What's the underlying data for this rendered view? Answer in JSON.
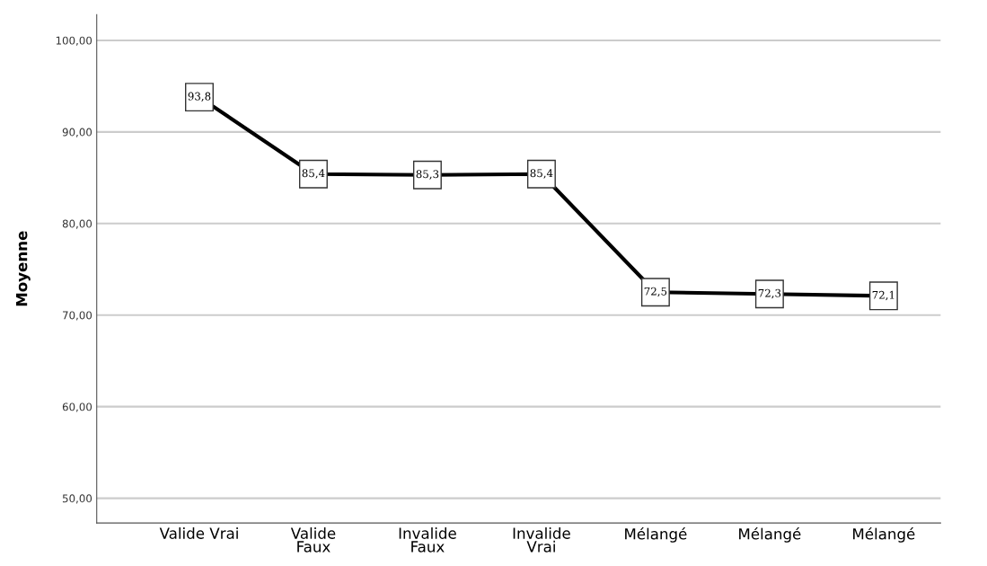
{
  "chart_data": {
    "type": "line",
    "ylabel": "Moyenne",
    "categories": [
      "Valide Vrai",
      "Valide\nFaux",
      "Invalide\nFaux",
      "Invalide\nVrai",
      "Mélangé",
      "Mélangé",
      "Mélangé"
    ],
    "series": [
      {
        "color": "#000000",
        "values": [
          93.8,
          85.4,
          85.3,
          85.4,
          72.5,
          72.3,
          72.1
        ],
        "value_labels": [
          "93,8",
          "85,4",
          "85,3",
          "85,4",
          "72,5",
          "72,3",
          "72,1"
        ]
      }
    ],
    "ylim": [
      47.3,
      102.8
    ],
    "yticks": [
      {
        "value": 50,
        "label": "50,00"
      },
      {
        "value": 60,
        "label": "60,00"
      },
      {
        "value": 70,
        "label": "70,00"
      },
      {
        "value": 80,
        "label": "80,00"
      },
      {
        "value": 90,
        "label": "90,00"
      },
      {
        "value": 100,
        "label": "100,00"
      }
    ],
    "grid": "y",
    "marker": "square",
    "line_style": "solid",
    "legend": false
  }
}
